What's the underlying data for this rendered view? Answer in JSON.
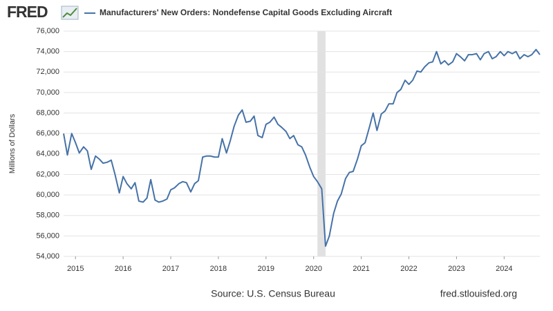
{
  "logo": "FRED",
  "chart_data": {
    "type": "line",
    "y_label": "Millions of Dollars",
    "source": "Source: U.S. Census Bureau",
    "site": "fred.stlouisfed.org",
    "xlim": [
      2014.75,
      2024.75
    ],
    "xticks": [
      2015,
      2016,
      2017,
      2018,
      2019,
      2020,
      2021,
      2022,
      2023,
      2024
    ],
    "ylim": [
      54000,
      76000
    ],
    "yticks": [
      {
        "value": 54000,
        "label": "54,000"
      },
      {
        "value": 56000,
        "label": "56,000"
      },
      {
        "value": 58000,
        "label": "58,000"
      },
      {
        "value": 60000,
        "label": "60,000"
      },
      {
        "value": 62000,
        "label": "62,000"
      },
      {
        "value": 64000,
        "label": "64,000"
      },
      {
        "value": 66000,
        "label": "66,000"
      },
      {
        "value": 68000,
        "label": "68,000"
      },
      {
        "value": 70000,
        "label": "70,000"
      },
      {
        "value": 72000,
        "label": "72,000"
      },
      {
        "value": 74000,
        "label": "74,000"
      },
      {
        "value": 76000,
        "label": "76,000"
      }
    ],
    "grid": true,
    "shaded_ranges": [
      [
        2020.08,
        2020.25
      ]
    ],
    "shade_color": "#e1e1e1",
    "x": [
      2014.75,
      2014.83,
      2014.92,
      2015.0,
      2015.08,
      2015.17,
      2015.25,
      2015.33,
      2015.42,
      2015.5,
      2015.58,
      2015.67,
      2015.75,
      2015.83,
      2015.92,
      2016.0,
      2016.08,
      2016.17,
      2016.25,
      2016.33,
      2016.42,
      2016.5,
      2016.58,
      2016.67,
      2016.75,
      2016.83,
      2016.92,
      2017.0,
      2017.08,
      2017.17,
      2017.25,
      2017.33,
      2017.42,
      2017.5,
      2017.58,
      2017.67,
      2017.75,
      2017.83,
      2017.92,
      2018.0,
      2018.08,
      2018.17,
      2018.25,
      2018.33,
      2018.42,
      2018.5,
      2018.58,
      2018.67,
      2018.75,
      2018.83,
      2018.92,
      2019.0,
      2019.08,
      2019.17,
      2019.25,
      2019.33,
      2019.42,
      2019.5,
      2019.58,
      2019.67,
      2019.75,
      2019.83,
      2019.92,
      2020.0,
      2020.08,
      2020.17,
      2020.25,
      2020.33,
      2020.42,
      2020.5,
      2020.58,
      2020.67,
      2020.75,
      2020.83,
      2020.92,
      2021.0,
      2021.08,
      2021.17,
      2021.25,
      2021.33,
      2021.42,
      2021.5,
      2021.58,
      2021.67,
      2021.75,
      2021.83,
      2021.92,
      2022.0,
      2022.08,
      2022.17,
      2022.25,
      2022.33,
      2022.42,
      2022.5,
      2022.58,
      2022.67,
      2022.75,
      2022.83,
      2022.92,
      2023.0,
      2023.08,
      2023.17,
      2023.25,
      2023.33,
      2023.42,
      2023.5,
      2023.58,
      2023.67,
      2023.75,
      2023.83,
      2023.92,
      2024.0,
      2024.08,
      2024.17,
      2024.25,
      2024.33,
      2024.42,
      2024.5,
      2024.58,
      2024.67,
      2024.75
    ],
    "series": [
      {
        "name": "Manufacturers' New Orders: Nondefense Capital Goods Excluding Aircraft",
        "color": "#4572a7",
        "values": [
          66000,
          63900,
          66000,
          65100,
          64100,
          64700,
          64300,
          62500,
          63800,
          63500,
          63100,
          63200,
          63400,
          62000,
          60200,
          61800,
          61100,
          60600,
          61200,
          59400,
          59300,
          59700,
          61500,
          59500,
          59300,
          59400,
          59600,
          60500,
          60700,
          61100,
          61300,
          61200,
          60300,
          61100,
          61400,
          63700,
          63800,
          63800,
          63700,
          63700,
          65500,
          64100,
          65300,
          66700,
          67800,
          68300,
          67100,
          67200,
          67700,
          65800,
          65600,
          66900,
          67100,
          67600,
          66900,
          66600,
          66200,
          65500,
          65800,
          64900,
          64700,
          63900,
          62700,
          61800,
          61300,
          60600,
          55000,
          56000,
          58200,
          59400,
          60100,
          61600,
          62200,
          62300,
          63500,
          64800,
          65100,
          66600,
          68000,
          66300,
          67900,
          68200,
          68900,
          68900,
          70000,
          70300,
          71200,
          70800,
          71200,
          72100,
          72000,
          72500,
          72900,
          73000,
          74000,
          72800,
          73100,
          72700,
          73000,
          73800,
          73500,
          73100,
          73700,
          73700,
          73800,
          73200,
          73800,
          74000,
          73300,
          73500,
          74000,
          73600,
          74000,
          73800,
          74000,
          73300,
          73700,
          73500,
          73700,
          74200,
          73700
        ]
      }
    ]
  }
}
